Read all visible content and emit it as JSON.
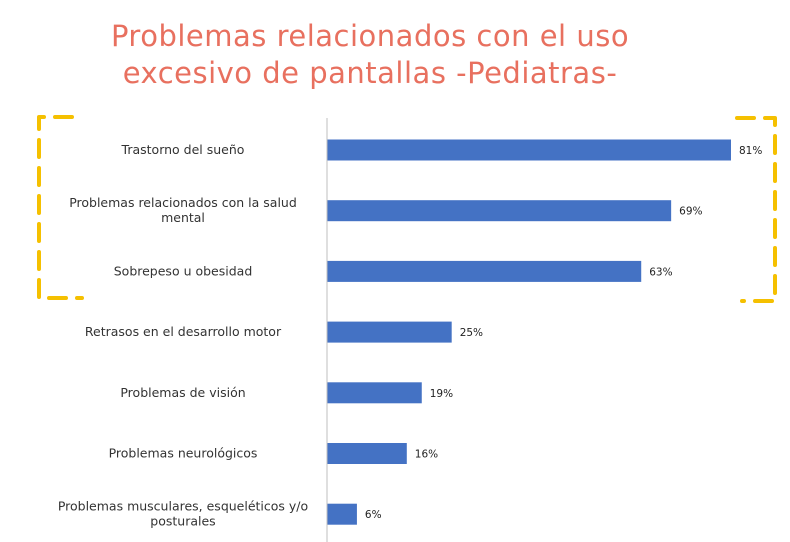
{
  "title_lines": [
    "Problemas relacionados con el uso",
    "excesivo de pantallas -Pediatras-"
  ],
  "colors": {
    "title": "#e8705f",
    "bar": "#4472c4",
    "highlight_bracket": "#f5c000",
    "axis": "#bfbfbf"
  },
  "chart_data": {
    "type": "bar",
    "orientation": "horizontal",
    "categories": [
      [
        "Trastorno del sueño"
      ],
      [
        "Problemas relacionados con la salud",
        "mental"
      ],
      [
        "Sobrepeso u obesidad"
      ],
      [
        "Retrasos en el desarrollo motor"
      ],
      [
        "Problemas de visión"
      ],
      [
        "Problemas neurológicos"
      ],
      [
        "Problemas musculares, esqueléticos y/o",
        "posturales"
      ]
    ],
    "values": [
      81,
      69,
      63,
      25,
      19,
      16,
      6
    ],
    "value_labels": [
      "81%",
      "69%",
      "63%",
      "25%",
      "19%",
      "16%",
      "6%"
    ],
    "xlim": [
      0,
      100
    ],
    "grid": false,
    "highlighted_categories": [
      0,
      1,
      2
    ]
  }
}
